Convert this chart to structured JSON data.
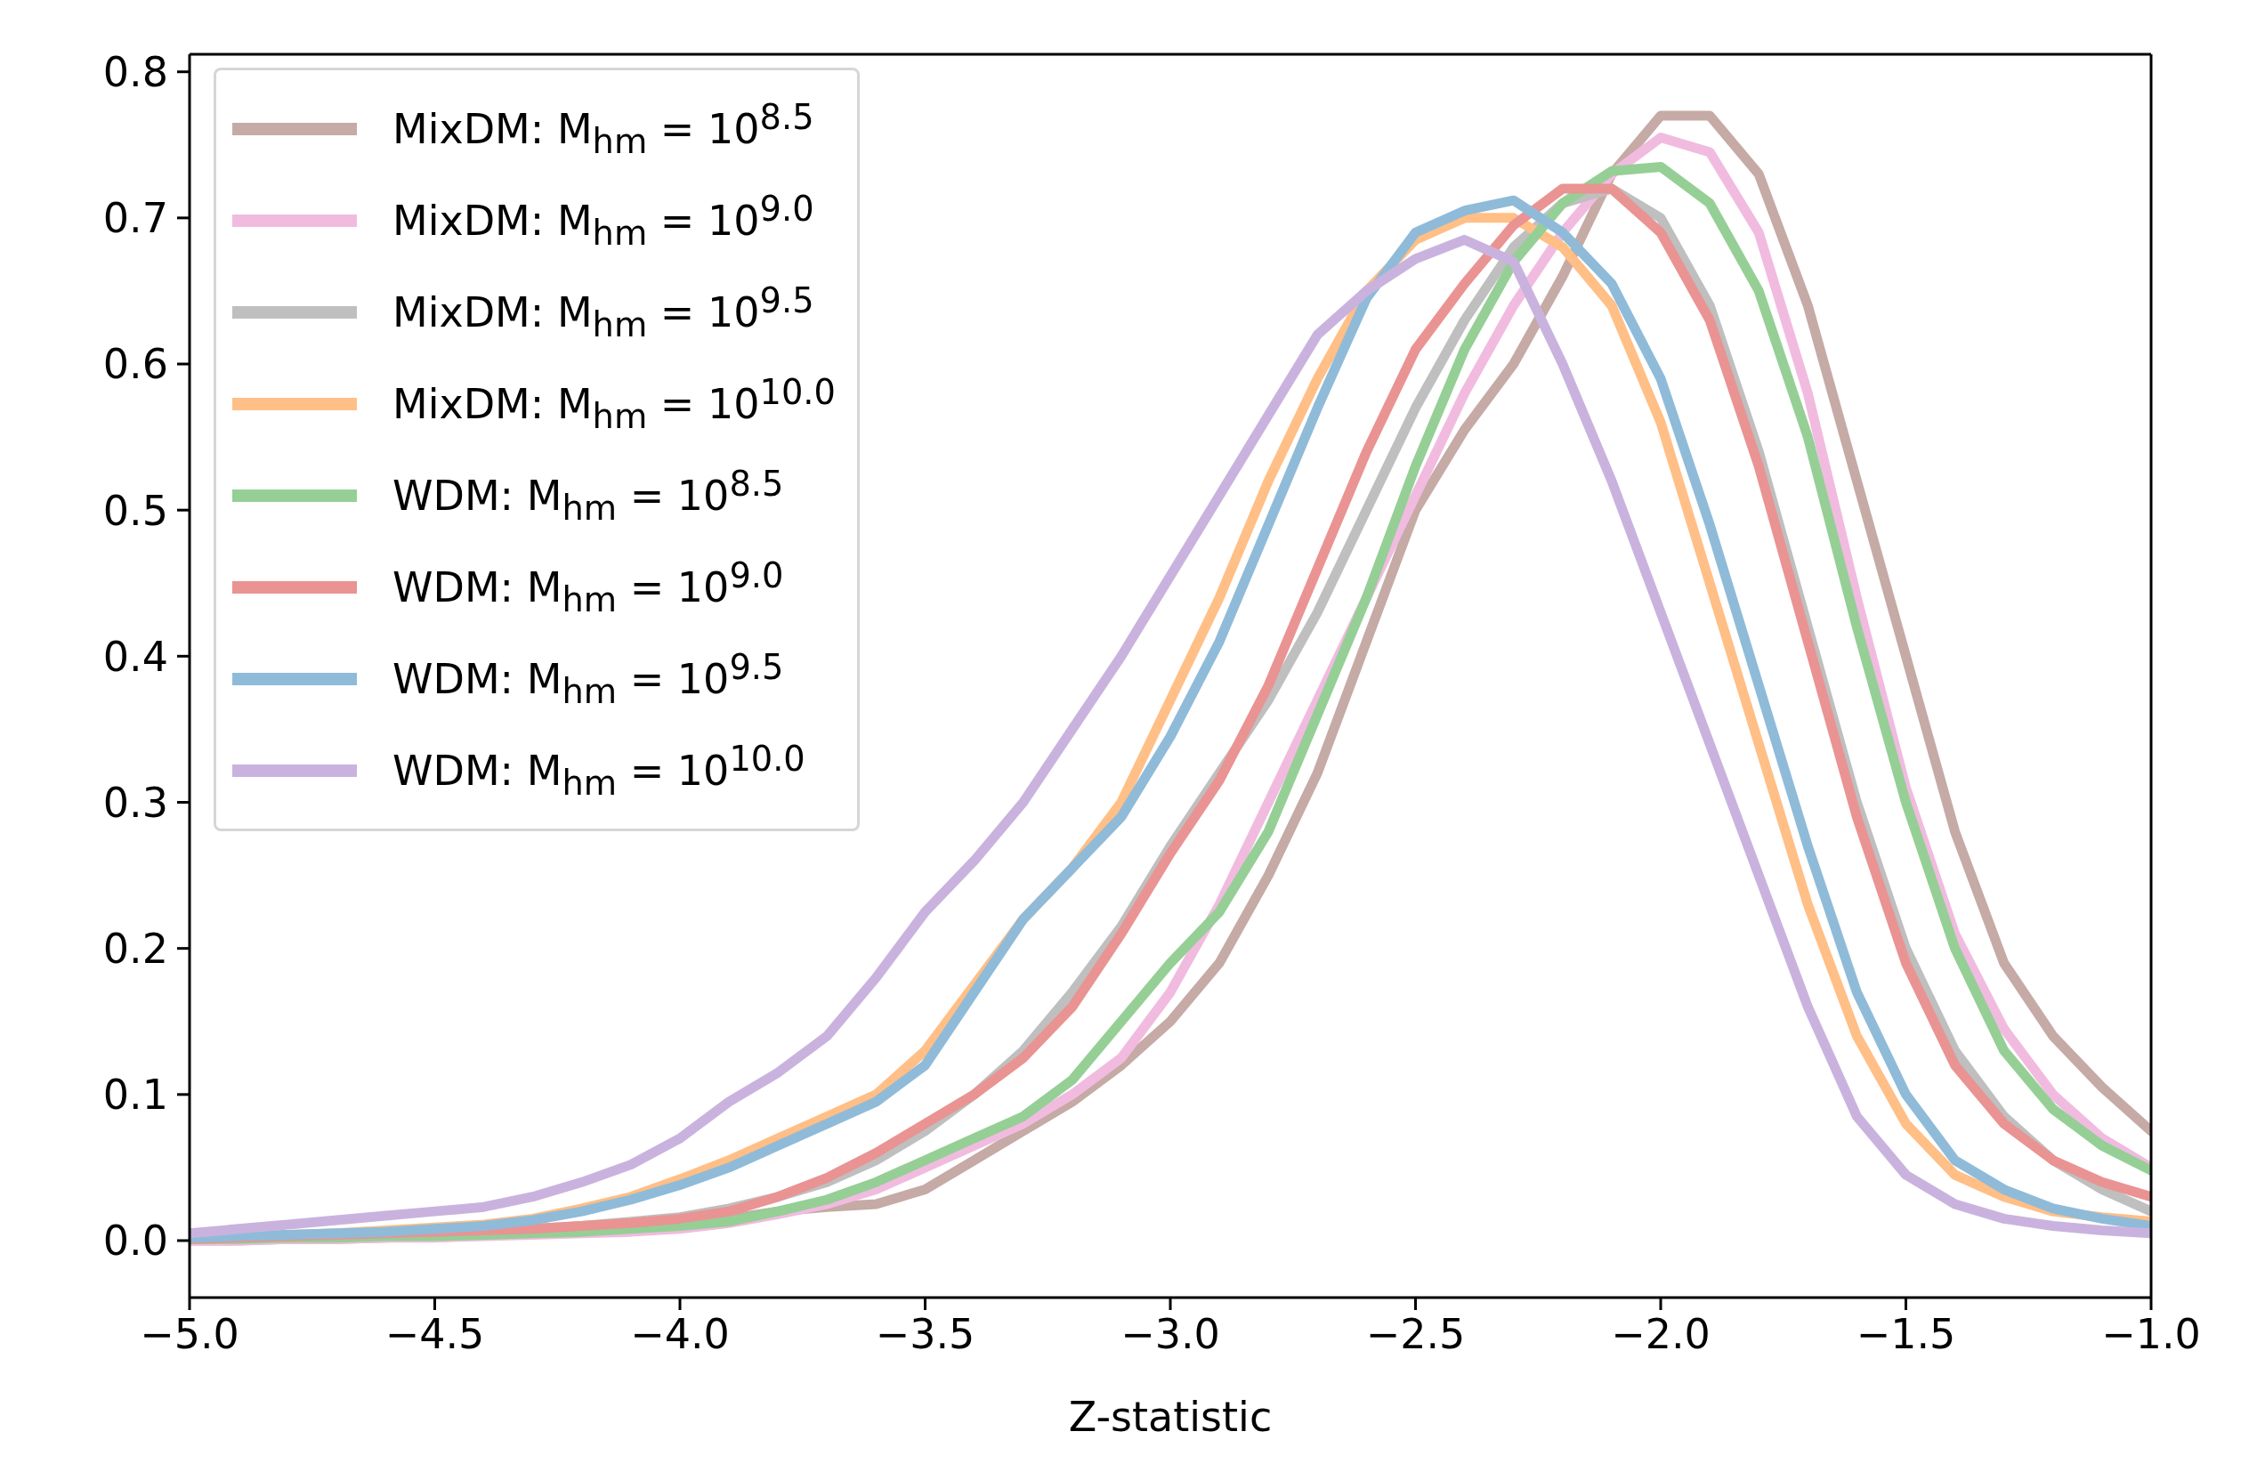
{
  "chart_data": {
    "type": "line",
    "xlabel": "Z-statistic",
    "x": [
      -5.0,
      -4.9,
      -4.8,
      -4.7,
      -4.6,
      -4.5,
      -4.4,
      -4.3,
      -4.2,
      -4.1,
      -4.0,
      -3.9,
      -3.8,
      -3.7,
      -3.6,
      -3.5,
      -3.4,
      -3.3,
      -3.2,
      -3.1,
      -3.0,
      -2.9,
      -2.8,
      -2.7,
      -2.6,
      -2.5,
      -2.4,
      -2.3,
      -2.2,
      -2.1,
      -2.0,
      -1.9,
      -1.8,
      -1.7,
      -1.6,
      -1.5,
      -1.4,
      -1.3,
      -1.2,
      -1.1,
      -1.0
    ],
    "series": [
      {
        "name": "MixDM: M$_{hm}$ = 10$^{8.5}$",
        "color": "#c5aaa5",
        "values": [
          0.0,
          0.0,
          0.001,
          0.001,
          0.002,
          0.003,
          0.004,
          0.005,
          0.007,
          0.01,
          0.012,
          0.015,
          0.02,
          0.023,
          0.025,
          0.035,
          0.055,
          0.075,
          0.095,
          0.12,
          0.15,
          0.19,
          0.25,
          0.32,
          0.41,
          0.5,
          0.555,
          0.6,
          0.66,
          0.73,
          0.77,
          0.77,
          0.73,
          0.64,
          0.52,
          0.4,
          0.28,
          0.19,
          0.14,
          0.105,
          0.075
        ]
      },
      {
        "name": "MixDM: M$_{hm}$ = 10$^{9.0}$",
        "color": "#f1bbe0",
        "values": [
          0.0,
          0.0,
          0.001,
          0.001,
          0.002,
          0.002,
          0.003,
          0.004,
          0.005,
          0.006,
          0.008,
          0.012,
          0.018,
          0.025,
          0.035,
          0.05,
          0.065,
          0.08,
          0.1,
          0.125,
          0.17,
          0.23,
          0.3,
          0.37,
          0.44,
          0.51,
          0.58,
          0.64,
          0.69,
          0.73,
          0.755,
          0.745,
          0.69,
          0.58,
          0.44,
          0.31,
          0.21,
          0.145,
          0.1,
          0.07,
          0.05
        ]
      },
      {
        "name": "MixDM: M$_{hm}$ = 10$^{9.5}$",
        "color": "#bfbfbf",
        "values": [
          0.001,
          0.002,
          0.003,
          0.004,
          0.005,
          0.006,
          0.007,
          0.008,
          0.01,
          0.013,
          0.016,
          0.022,
          0.03,
          0.04,
          0.055,
          0.075,
          0.1,
          0.13,
          0.17,
          0.215,
          0.27,
          0.32,
          0.37,
          0.43,
          0.5,
          0.57,
          0.63,
          0.68,
          0.71,
          0.72,
          0.7,
          0.64,
          0.54,
          0.42,
          0.3,
          0.2,
          0.13,
          0.085,
          0.055,
          0.035,
          0.02
        ]
      },
      {
        "name": "MixDM: M$_{hm}$ = 10$^{10.0}$",
        "color": "#ffbf86",
        "values": [
          0.002,
          0.003,
          0.004,
          0.005,
          0.007,
          0.009,
          0.011,
          0.015,
          0.022,
          0.03,
          0.042,
          0.055,
          0.07,
          0.085,
          0.1,
          0.13,
          0.175,
          0.22,
          0.255,
          0.3,
          0.37,
          0.44,
          0.52,
          0.59,
          0.65,
          0.685,
          0.7,
          0.7,
          0.68,
          0.64,
          0.56,
          0.45,
          0.34,
          0.23,
          0.14,
          0.08,
          0.045,
          0.03,
          0.02,
          0.016,
          0.013
        ]
      },
      {
        "name": "WDM: M$_{hm}$ = 10$^{8.5}$",
        "color": "#95cf95",
        "values": [
          0.001,
          0.001,
          0.002,
          0.002,
          0.003,
          0.003,
          0.004,
          0.005,
          0.006,
          0.008,
          0.01,
          0.013,
          0.02,
          0.028,
          0.04,
          0.055,
          0.07,
          0.085,
          0.11,
          0.15,
          0.19,
          0.225,
          0.28,
          0.36,
          0.44,
          0.53,
          0.61,
          0.67,
          0.71,
          0.732,
          0.735,
          0.71,
          0.65,
          0.55,
          0.42,
          0.3,
          0.2,
          0.13,
          0.09,
          0.065,
          0.048
        ]
      },
      {
        "name": "WDM: M$_{hm}$ = 10$^{9.0}$",
        "color": "#ea9393",
        "values": [
          0.001,
          0.002,
          0.003,
          0.004,
          0.005,
          0.006,
          0.007,
          0.008,
          0.01,
          0.012,
          0.015,
          0.02,
          0.03,
          0.043,
          0.06,
          0.08,
          0.1,
          0.125,
          0.16,
          0.21,
          0.265,
          0.315,
          0.38,
          0.46,
          0.54,
          0.61,
          0.655,
          0.695,
          0.72,
          0.72,
          0.69,
          0.63,
          0.53,
          0.41,
          0.29,
          0.19,
          0.12,
          0.08,
          0.055,
          0.04,
          0.03
        ]
      },
      {
        "name": "WDM: M$_{hm}$ = 10$^{9.5}$",
        "color": "#8fbbd9",
        "values": [
          0.002,
          0.003,
          0.004,
          0.005,
          0.006,
          0.008,
          0.01,
          0.014,
          0.02,
          0.028,
          0.038,
          0.05,
          0.065,
          0.08,
          0.095,
          0.12,
          0.17,
          0.22,
          0.255,
          0.29,
          0.345,
          0.41,
          0.49,
          0.57,
          0.645,
          0.69,
          0.705,
          0.712,
          0.69,
          0.655,
          0.59,
          0.49,
          0.38,
          0.27,
          0.17,
          0.1,
          0.055,
          0.035,
          0.022,
          0.015,
          0.01
        ]
      },
      {
        "name": "WDM: M$_{hm}$ = 10$^{10.0}$",
        "color": "#c9b3de",
        "values": [
          0.005,
          0.008,
          0.011,
          0.014,
          0.017,
          0.02,
          0.023,
          0.03,
          0.04,
          0.052,
          0.07,
          0.095,
          0.115,
          0.14,
          0.18,
          0.225,
          0.26,
          0.3,
          0.35,
          0.4,
          0.455,
          0.51,
          0.565,
          0.62,
          0.65,
          0.672,
          0.685,
          0.67,
          0.6,
          0.52,
          0.43,
          0.34,
          0.25,
          0.16,
          0.085,
          0.045,
          0.025,
          0.015,
          0.01,
          0.007,
          0.005
        ]
      }
    ],
    "xlim": [
      -5.0,
      -1.0
    ],
    "xticks": [
      {
        "value": -5.0,
        "label": "−5.0"
      },
      {
        "value": -4.5,
        "label": "−4.5"
      },
      {
        "value": -4.0,
        "label": "−4.0"
      },
      {
        "value": -3.5,
        "label": "−3.5"
      },
      {
        "value": -3.0,
        "label": "−3.0"
      },
      {
        "value": -2.5,
        "label": "−2.5"
      },
      {
        "value": -2.0,
        "label": "−2.0"
      },
      {
        "value": -1.5,
        "label": "−1.5"
      },
      {
        "value": -1.0,
        "label": "−1.0"
      }
    ],
    "ylim": [
      -0.039,
      0.812
    ],
    "yticks": [
      {
        "value": 0.0,
        "label": "0.0"
      },
      {
        "value": 0.1,
        "label": "0.1"
      },
      {
        "value": 0.2,
        "label": "0.2"
      },
      {
        "value": 0.3,
        "label": "0.3"
      },
      {
        "value": 0.4,
        "label": "0.4"
      },
      {
        "value": 0.5,
        "label": "0.5"
      },
      {
        "value": 0.6,
        "label": "0.6"
      },
      {
        "value": 0.7,
        "label": "0.7"
      },
      {
        "value": 0.8,
        "label": "0.8"
      }
    ],
    "legend": "top left",
    "marker": "none",
    "line_style": "solid",
    "grid": false
  }
}
